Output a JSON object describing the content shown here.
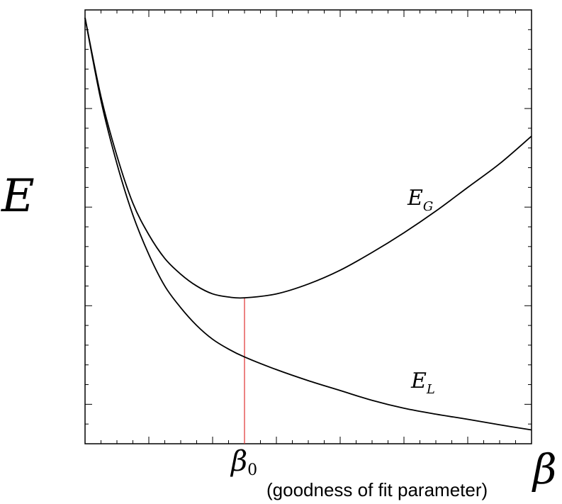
{
  "chart_data": {
    "type": "line",
    "title": "",
    "ylabel": "E",
    "xlabel_symbol": "β",
    "xlabel_description": "(goodness of fit parameter)",
    "marker": {
      "label": "β",
      "subscript": "0",
      "x": 2.5,
      "color": "#e03030"
    },
    "xlim": [
      0,
      7
    ],
    "ylim": [
      0,
      11
    ],
    "grid": false,
    "axis_tick_labels": "none",
    "series": [
      {
        "name": "E",
        "subscript": "G",
        "x": [
          0.0,
          0.25,
          0.5,
          0.75,
          1.0,
          1.25,
          1.5,
          1.75,
          2.0,
          2.25,
          2.5,
          3.0,
          3.5,
          4.0,
          4.5,
          5.0,
          5.5,
          6.0,
          6.5,
          7.0
        ],
        "values": [
          10.8,
          8.8,
          7.3,
          6.1,
          5.3,
          4.7,
          4.3,
          4.0,
          3.8,
          3.72,
          3.7,
          3.8,
          4.05,
          4.4,
          4.85,
          5.35,
          5.9,
          6.5,
          7.1,
          7.8
        ]
      },
      {
        "name": "E",
        "subscript": "L",
        "x": [
          0.0,
          0.25,
          0.5,
          0.75,
          1.0,
          1.25,
          1.5,
          1.75,
          2.0,
          2.25,
          2.5,
          3.0,
          3.5,
          4.0,
          4.5,
          5.0,
          5.5,
          6.0,
          6.5,
          7.0
        ],
        "values": [
          10.8,
          8.7,
          7.1,
          5.8,
          4.8,
          4.0,
          3.45,
          3.0,
          2.65,
          2.4,
          2.2,
          1.88,
          1.6,
          1.35,
          1.1,
          0.9,
          0.75,
          0.62,
          0.48,
          0.35
        ]
      }
    ]
  }
}
